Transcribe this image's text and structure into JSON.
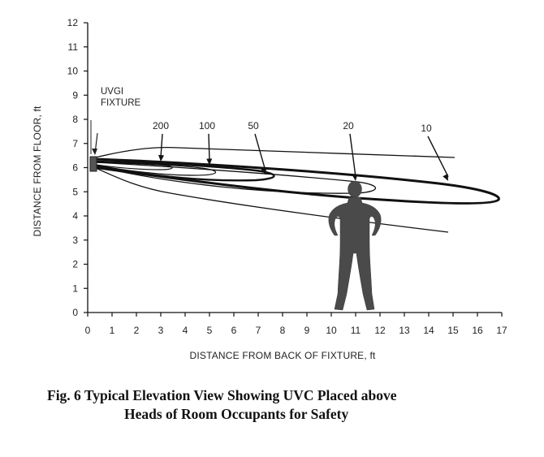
{
  "chart_data": {
    "type": "diagram",
    "xlabel": "DISTANCE FROM BACK OF FIXTURE, ft",
    "ylabel": "DISTANCE FROM FLOOR, ft",
    "xlim": [
      0,
      17
    ],
    "ylim": [
      0,
      12
    ],
    "x_ticks": [
      "0",
      "1",
      "2",
      "3",
      "4",
      "5",
      "6",
      "7",
      "8",
      "9",
      "10",
      "11",
      "12",
      "13",
      "14",
      "15",
      "16",
      "17"
    ],
    "y_ticks": [
      "0",
      "1",
      "2",
      "3",
      "4",
      "5",
      "6",
      "7",
      "8",
      "9",
      "10",
      "11",
      "12"
    ],
    "fixture_label_line1": "UVGI",
    "fixture_label_line2": "FIXTURE",
    "contour_labels": [
      "200",
      "100",
      "50",
      "20",
      "10"
    ],
    "contours": [
      {
        "level": "200",
        "label_at": [
          3.0,
          7.6
        ],
        "arrow_to": [
          3.0,
          6.25
        ]
      },
      {
        "level": "100",
        "label_at": [
          4.9,
          7.6
        ],
        "arrow_to": [
          5.0,
          6.1
        ]
      },
      {
        "level": "50",
        "label_at": [
          6.8,
          7.6
        ],
        "arrow_to": [
          7.3,
          5.7
        ]
      },
      {
        "level": "20",
        "label_at": [
          10.7,
          7.6
        ],
        "arrow_to": [
          11.0,
          5.45
        ]
      },
      {
        "level": "10",
        "label_at": [
          13.9,
          7.5
        ],
        "arrow_to": [
          14.8,
          5.45
        ]
      }
    ]
  },
  "caption": {
    "line1": "Fig. 6    Typical Elevation View Showing UVC Placed above",
    "line2": "Heads of Room Occupants for Safety"
  }
}
